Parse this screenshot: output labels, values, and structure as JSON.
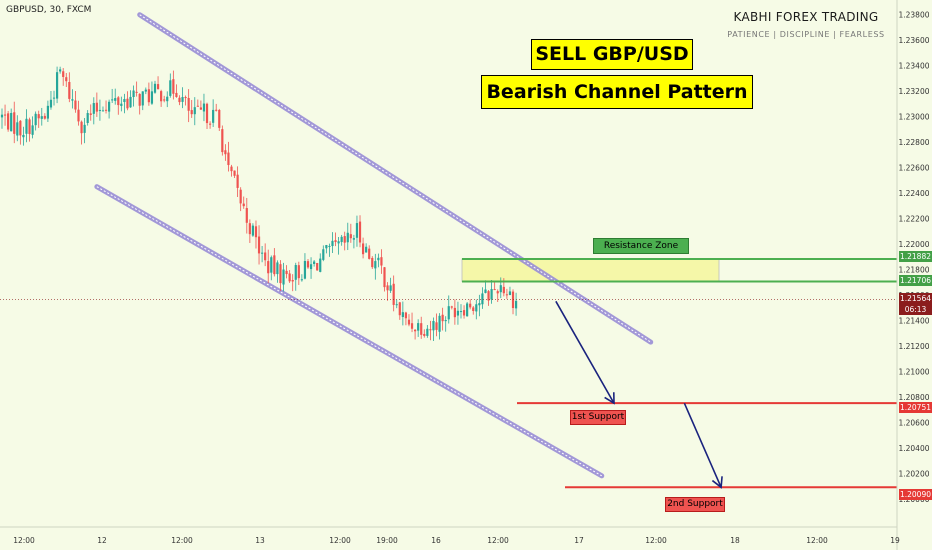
{
  "header": {
    "ticker": "GBPUSD, 30, FXCM",
    "brand": "KABHI FOREX TRADING",
    "tagline": "PATIENCE | DISCIPLINE | FEARLESS"
  },
  "annotations": {
    "title_line_1": "SELL GBP/USD",
    "title_line_2": "Bearish Channel Pattern",
    "resistance_label": "Resistance Zone",
    "support1_label": "1st Support",
    "support2_label": "2nd Support"
  },
  "price_tags": {
    "resistance_top": "1.21882",
    "resistance_bottom": "1.21706",
    "current_price": "1.21564",
    "countdown": "06:13",
    "support1": "1.20751",
    "support2": "1.20090"
  },
  "colors": {
    "background": "#f6fbe6",
    "candle_up": "#26a69a",
    "candle_down": "#ef5350",
    "channel": "#9a8ed6",
    "resistance": "#4caf50",
    "resistance_fill": "#f5f7a8",
    "support": "#e53935",
    "arrow": "#1a237e",
    "title_fill": "#ffff00"
  },
  "chart_data": {
    "type": "candlestick",
    "symbol": "GBPUSD",
    "timeframe": "30",
    "source": "FXCM",
    "y_axis": {
      "range": [
        1.199,
        1.239
      ],
      "tick_labels": [
        "1.23800",
        "1.23600",
        "1.23400",
        "1.23200",
        "1.23000",
        "1.22800",
        "1.22600",
        "1.22400",
        "1.22200",
        "1.22000",
        "1.21800",
        "1.21600",
        "1.21400",
        "1.21200",
        "1.21000",
        "1.20800",
        "1.20600",
        "1.20400",
        "1.20200",
        "1.20000"
      ]
    },
    "x_axis": {
      "tick_labels": [
        "12:00",
        "12",
        "12:00",
        "13",
        "12:00",
        "19:00",
        "16",
        "12:00",
        "17",
        "12:00",
        "18",
        "12:00",
        "19"
      ]
    },
    "close_path": [
      {
        "bar": 0,
        "price": 1.23
      },
      {
        "bar": 6,
        "price": 1.229
      },
      {
        "bar": 14,
        "price": 1.23
      },
      {
        "bar": 19,
        "price": 1.2335
      },
      {
        "bar": 26,
        "price": 1.2295
      },
      {
        "bar": 33,
        "price": 1.231
      },
      {
        "bar": 45,
        "price": 1.2315
      },
      {
        "bar": 57,
        "price": 1.2322
      },
      {
        "bar": 62,
        "price": 1.23
      },
      {
        "bar": 66,
        "price": 1.2303
      },
      {
        "bar": 70,
        "price": 1.23
      },
      {
        "bar": 74,
        "price": 1.226
      },
      {
        "bar": 80,
        "price": 1.222
      },
      {
        "bar": 86,
        "price": 1.2185
      },
      {
        "bar": 92,
        "price": 1.2175
      },
      {
        "bar": 100,
        "price": 1.218
      },
      {
        "bar": 108,
        "price": 1.2195
      },
      {
        "bar": 112,
        "price": 1.22
      },
      {
        "bar": 116,
        "price": 1.221
      },
      {
        "bar": 120,
        "price": 1.219
      },
      {
        "bar": 124,
        "price": 1.218
      },
      {
        "bar": 128,
        "price": 1.2155
      },
      {
        "bar": 132,
        "price": 1.2138
      },
      {
        "bar": 140,
        "price": 1.2135
      },
      {
        "bar": 148,
        "price": 1.215
      },
      {
        "bar": 156,
        "price": 1.2155
      },
      {
        "bar": 163,
        "price": 1.2168
      },
      {
        "bar": 168,
        "price": 1.2155
      }
    ],
    "bar_count": 169,
    "levels": {
      "resistance_zone": [
        1.21706,
        1.21882
      ],
      "support_1": 1.20751,
      "support_2": 1.2009,
      "current_price": 1.21564
    },
    "channel": {
      "upper": {
        "from": {
          "bar": 45,
          "price": 1.238
        },
        "to": {
          "bar": 212,
          "price": 1.2123
        }
      },
      "lower": {
        "from": {
          "bar": 31,
          "price": 1.2245
        },
        "to": {
          "bar": 196,
          "price": 1.2018
        }
      }
    },
    "projection": [
      {
        "bar": 181,
        "price": 1.2155
      },
      {
        "bar": 200,
        "price": 1.2075
      },
      {
        "bar": 223,
        "price": 1.2075
      },
      {
        "bar": 235,
        "price": 1.2009
      }
    ],
    "grid": false,
    "legend": "none"
  }
}
